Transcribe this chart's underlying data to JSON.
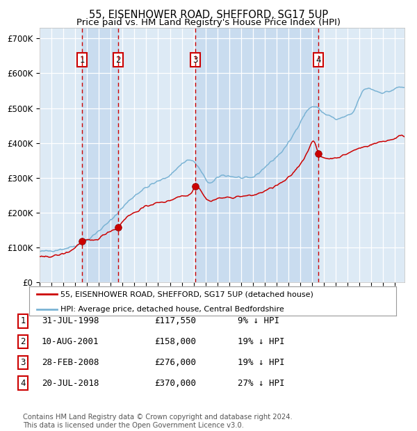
{
  "title1": "55, EISENHOWER ROAD, SHEFFORD, SG17 5UP",
  "title2": "Price paid vs. HM Land Registry's House Price Index (HPI)",
  "title_fontsize": 10.5,
  "subtitle_fontsize": 9.5,
  "ylabel_vals": [
    0,
    100000,
    200000,
    300000,
    400000,
    500000,
    600000,
    700000
  ],
  "ylabel_labels": [
    "£0",
    "£100K",
    "£200K",
    "£300K",
    "£400K",
    "£500K",
    "£600K",
    "£700K"
  ],
  "ylim": [
    0,
    730000
  ],
  "xlim_start": 1995.0,
  "xlim_end": 2025.8,
  "hpi_color": "#7ab3d4",
  "sale_color": "#cc0000",
  "background_color": "#ffffff",
  "plot_bg_color": "#ddeaf5",
  "grid_color": "#ffffff",
  "sale_events": [
    {
      "year": 1998.58,
      "price": 117550,
      "label": "1"
    },
    {
      "year": 2001.61,
      "price": 158000,
      "label": "2"
    },
    {
      "year": 2008.16,
      "price": 276000,
      "label": "3"
    },
    {
      "year": 2018.55,
      "price": 370000,
      "label": "4"
    }
  ],
  "vline_color": "#cc0000",
  "shade_color": "#c5d9ee",
  "shade_alpha": 0.8,
  "legend_entries": [
    "55, EISENHOWER ROAD, SHEFFORD, SG17 5UP (detached house)",
    "HPI: Average price, detached house, Central Bedfordshire"
  ],
  "footer_text": "Contains HM Land Registry data © Crown copyright and database right 2024.\nThis data is licensed under the Open Government Licence v3.0.",
  "table_rows": [
    {
      "num": "1",
      "date": "31-JUL-1998",
      "price": "£117,550",
      "hpi": "9% ↓ HPI"
    },
    {
      "num": "2",
      "date": "10-AUG-2001",
      "price": "£158,000",
      "hpi": "19% ↓ HPI"
    },
    {
      "num": "3",
      "date": "28-FEB-2008",
      "price": "£276,000",
      "hpi": "19% ↓ HPI"
    },
    {
      "num": "4",
      "date": "20-JUL-2018",
      "price": "£370,000",
      "hpi": "27% ↓ HPI"
    }
  ],
  "hpi_anchors_x": [
    1995.0,
    1996.0,
    1997.0,
    1998.0,
    1999.0,
    2000.0,
    2001.0,
    2002.0,
    2003.0,
    2004.0,
    2005.0,
    2006.0,
    2007.0,
    2007.8,
    2008.5,
    2009.5,
    2010.0,
    2011.0,
    2012.0,
    2013.0,
    2014.0,
    2015.0,
    2016.0,
    2017.0,
    2017.8,
    2018.5,
    2019.0,
    2019.5,
    2020.0,
    2020.5,
    2021.0,
    2021.5,
    2022.0,
    2022.5,
    2023.0,
    2023.5,
    2024.0,
    2024.5,
    2025.3
  ],
  "hpi_anchors_y": [
    88000,
    91000,
    96000,
    105000,
    120000,
    148000,
    178000,
    215000,
    248000,
    272000,
    290000,
    308000,
    340000,
    350000,
    325000,
    285000,
    300000,
    305000,
    300000,
    302000,
    330000,
    360000,
    400000,
    460000,
    500000,
    500000,
    485000,
    478000,
    468000,
    472000,
    478000,
    490000,
    530000,
    555000,
    555000,
    548000,
    545000,
    548000,
    560000
  ],
  "sale_anchors_x": [
    1995.0,
    1996.0,
    1997.0,
    1998.0,
    1998.58,
    1999.5,
    2000.5,
    2001.0,
    2001.61,
    2002.0,
    2003.0,
    2004.0,
    2005.0,
    2006.0,
    2007.0,
    2007.8,
    2008.16,
    2009.0,
    2010.0,
    2011.0,
    2012.0,
    2013.0,
    2014.0,
    2015.0,
    2016.0,
    2017.0,
    2017.8,
    2018.0,
    2018.55,
    2019.0,
    2019.5,
    2020.0,
    2020.5,
    2021.0,
    2021.5,
    2022.0,
    2022.5,
    2023.0,
    2024.0,
    2024.5,
    2025.3
  ],
  "sale_anchors_y": [
    72000,
    75000,
    82000,
    100000,
    117550,
    120000,
    138000,
    148000,
    158000,
    175000,
    200000,
    218000,
    228000,
    235000,
    248000,
    258000,
    276000,
    242000,
    240000,
    243000,
    247000,
    250000,
    262000,
    278000,
    300000,
    340000,
    390000,
    405000,
    370000,
    358000,
    355000,
    358000,
    362000,
    370000,
    378000,
    385000,
    390000,
    395000,
    405000,
    408000,
    420000
  ]
}
